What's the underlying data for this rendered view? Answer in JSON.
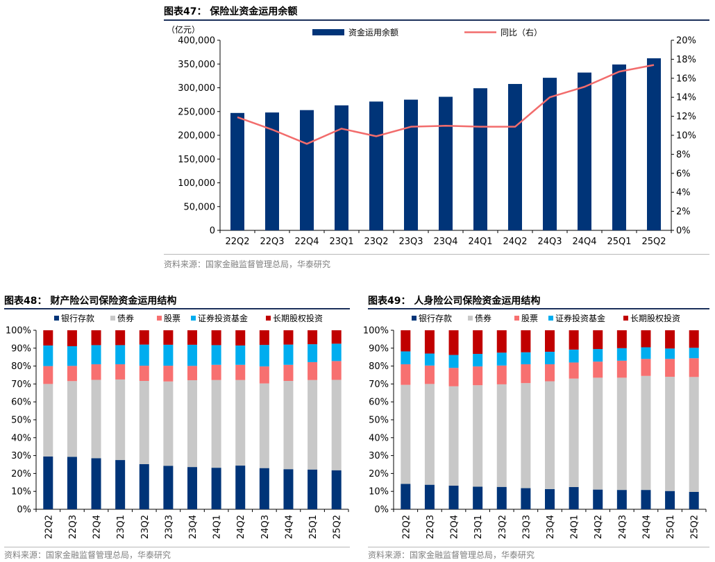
{
  "colors": {
    "navy": "#003478",
    "line": "#f26c6c",
    "deposit": "#003478",
    "bond": "#c8c8c8",
    "stock": "#f77070",
    "fund": "#00adef",
    "equity": "#c00000"
  },
  "chart_data": [
    {
      "id": "fig47",
      "type": "bar",
      "title": "图表47：  保险业资金运用余额",
      "unit_label": "（亿元）",
      "categories": [
        "22Q2",
        "22Q3",
        "22Q4",
        "23Q1",
        "23Q2",
        "23Q3",
        "23Q4",
        "24Q1",
        "24Q2",
        "24Q3",
        "24Q4",
        "25Q1",
        "25Q2"
      ],
      "series": [
        {
          "name": "资金运用余额",
          "type": "bar",
          "axis": "left",
          "values": [
            247000,
            248000,
            253000,
            263000,
            271000,
            275000,
            281000,
            299000,
            308000,
            321000,
            332000,
            349000,
            362000
          ]
        },
        {
          "name": "同比（右）",
          "type": "line",
          "axis": "right",
          "values": [
            0.119,
            0.106,
            0.091,
            0.107,
            0.099,
            0.109,
            0.11,
            0.109,
            0.109,
            0.14,
            0.151,
            0.167,
            0.174
          ]
        }
      ],
      "ylim_left": [
        0,
        400000
      ],
      "yticks_left": [
        "0",
        "50,000",
        "100,000",
        "150,000",
        "200,000",
        "250,000",
        "300,000",
        "350,000",
        "400,000"
      ],
      "ylim_right": [
        0,
        0.2
      ],
      "yticks_right": [
        "0%",
        "2%",
        "4%",
        "6%",
        "8%",
        "10%",
        "12%",
        "14%",
        "16%",
        "18%",
        "20%"
      ],
      "source": "资料来源：国家金融监督管理总局，华泰研究"
    },
    {
      "id": "fig48",
      "type": "bar",
      "stacked": true,
      "title": "图表48：  财产险公司保险资金运用结构",
      "categories": [
        "22Q2",
        "22Q3",
        "22Q4",
        "23Q1",
        "23Q2",
        "23Q3",
        "23Q4",
        "24Q1",
        "24Q2",
        "24Q3",
        "24Q4",
        "25Q1",
        "25Q2"
      ],
      "series": [
        {
          "name": "银行存款",
          "values": [
            0.295,
            0.293,
            0.285,
            0.275,
            0.252,
            0.243,
            0.236,
            0.232,
            0.244,
            0.23,
            0.224,
            0.222,
            0.218
          ]
        },
        {
          "name": "债券",
          "values": [
            0.405,
            0.423,
            0.438,
            0.45,
            0.465,
            0.471,
            0.485,
            0.49,
            0.478,
            0.473,
            0.493,
            0.5,
            0.505
          ]
        },
        {
          "name": "股票",
          "values": [
            0.1,
            0.085,
            0.087,
            0.085,
            0.085,
            0.088,
            0.08,
            0.085,
            0.085,
            0.095,
            0.09,
            0.1,
            0.105
          ]
        },
        {
          "name": "证券投资基金",
          "values": [
            0.115,
            0.11,
            0.107,
            0.107,
            0.118,
            0.117,
            0.118,
            0.11,
            0.108,
            0.12,
            0.113,
            0.1,
            0.097
          ]
        },
        {
          "name": "长期股权投资",
          "values": [
            0.085,
            0.089,
            0.083,
            0.083,
            0.08,
            0.081,
            0.081,
            0.083,
            0.085,
            0.082,
            0.08,
            0.078,
            0.075
          ]
        }
      ],
      "ylim": [
        0,
        1
      ],
      "yticks": [
        "0%",
        "10%",
        "20%",
        "30%",
        "40%",
        "50%",
        "60%",
        "70%",
        "80%",
        "90%",
        "100%"
      ],
      "source": "资料来源：国家金融监督管理总局，华泰研究"
    },
    {
      "id": "fig49",
      "type": "bar",
      "stacked": true,
      "title": "图表49：  人身险公司保险资金运用结构",
      "categories": [
        "22Q2",
        "22Q3",
        "22Q4",
        "23Q1",
        "23Q2",
        "23Q3",
        "23Q4",
        "24Q1",
        "24Q2",
        "24Q3",
        "24Q4",
        "25Q1",
        "25Q2"
      ],
      "series": [
        {
          "name": "银行存款",
          "values": [
            0.142,
            0.137,
            0.132,
            0.126,
            0.125,
            0.118,
            0.113,
            0.124,
            0.11,
            0.108,
            0.108,
            0.102,
            0.097
          ]
        },
        {
          "name": "债券",
          "values": [
            0.553,
            0.563,
            0.555,
            0.567,
            0.573,
            0.587,
            0.602,
            0.606,
            0.625,
            0.627,
            0.637,
            0.638,
            0.642
          ]
        },
        {
          "name": "股票",
          "values": [
            0.115,
            0.103,
            0.103,
            0.105,
            0.105,
            0.105,
            0.095,
            0.09,
            0.09,
            0.095,
            0.095,
            0.1,
            0.105
          ]
        },
        {
          "name": "证券投资基金",
          "values": [
            0.072,
            0.067,
            0.072,
            0.07,
            0.072,
            0.067,
            0.07,
            0.072,
            0.07,
            0.07,
            0.065,
            0.058,
            0.058
          ]
        },
        {
          "name": "长期股权投资",
          "values": [
            0.118,
            0.13,
            0.138,
            0.132,
            0.125,
            0.123,
            0.12,
            0.108,
            0.105,
            0.1,
            0.095,
            0.102,
            0.098
          ]
        }
      ],
      "ylim": [
        0,
        1
      ],
      "yticks": [
        "0%",
        "10%",
        "20%",
        "30%",
        "40%",
        "50%",
        "60%",
        "70%",
        "80%",
        "90%",
        "100%"
      ],
      "source": "资料来源：国家金融监督管理总局，华泰研究"
    }
  ]
}
